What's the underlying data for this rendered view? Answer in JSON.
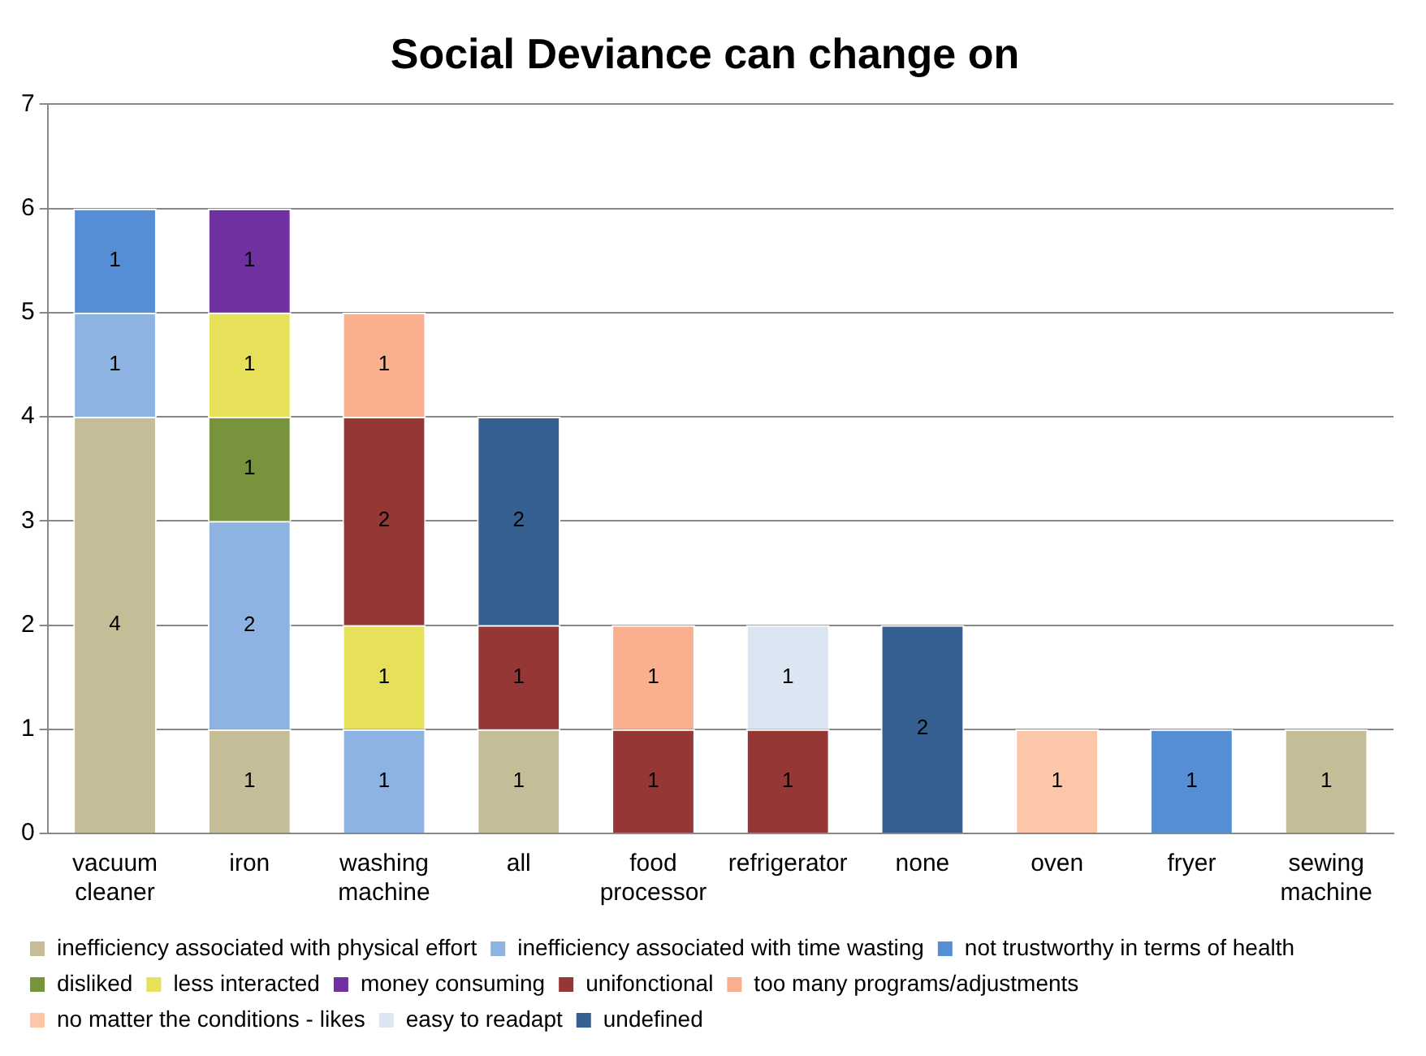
{
  "chart_data": {
    "type": "bar",
    "title": "Social Deviance can change on",
    "stacked": true,
    "data_labels": true,
    "grid": "y",
    "legend": "bottom",
    "categories": [
      "vacuum cleaner",
      "iron",
      "washing machine",
      "all",
      "food processor",
      "refrigerator",
      "none",
      "oven",
      "fryer",
      "sewing machine"
    ],
    "ylim": [
      0,
      7
    ],
    "yticks": [
      0,
      1,
      2,
      3,
      4,
      5,
      6,
      7
    ],
    "series": [
      {
        "name": "inefficiency associated with physical effort",
        "color": "#c4bd97",
        "values": [
          4,
          1,
          null,
          1,
          null,
          null,
          null,
          null,
          null,
          1
        ]
      },
      {
        "name": "inefficiency associated with time wasting",
        "color": "#8db3e2",
        "values": [
          1,
          2,
          1,
          null,
          null,
          null,
          null,
          null,
          null,
          null
        ]
      },
      {
        "name": "not trustworthy in terms of health",
        "color": "#558ed5",
        "values": [
          1,
          null,
          null,
          null,
          null,
          null,
          null,
          null,
          1,
          null
        ]
      },
      {
        "name": "disliked",
        "color": "#77933c",
        "values": [
          null,
          1,
          null,
          null,
          null,
          null,
          null,
          null,
          null,
          null
        ]
      },
      {
        "name": "less interacted",
        "color": "#e6e05a",
        "values": [
          null,
          1,
          1,
          null,
          null,
          null,
          null,
          null,
          null,
          null
        ]
      },
      {
        "name": "money consuming",
        "color": "#7030a0",
        "values": [
          null,
          1,
          null,
          null,
          null,
          null,
          null,
          null,
          null,
          null
        ]
      },
      {
        "name": "unifonctional",
        "color": "#953735",
        "values": [
          null,
          null,
          2,
          1,
          1,
          1,
          null,
          null,
          null,
          null
        ]
      },
      {
        "name": "too many programs/adjustments",
        "color": "#fab08f",
        "values": [
          null,
          null,
          1,
          null,
          1,
          null,
          null,
          null,
          null,
          null
        ]
      },
      {
        "name": "no matter the conditions - likes",
        "color": "#fcc6a8",
        "values": [
          null,
          null,
          null,
          null,
          null,
          null,
          null,
          1,
          null,
          null
        ]
      },
      {
        "name": "easy to readapt",
        "color": "#dce6f2",
        "values": [
          null,
          null,
          null,
          null,
          null,
          1,
          null,
          null,
          null,
          null
        ]
      },
      {
        "name": "undefined",
        "color": "#366092",
        "values": [
          null,
          null,
          null,
          2,
          null,
          null,
          2,
          null,
          null,
          null
        ]
      }
    ]
  }
}
